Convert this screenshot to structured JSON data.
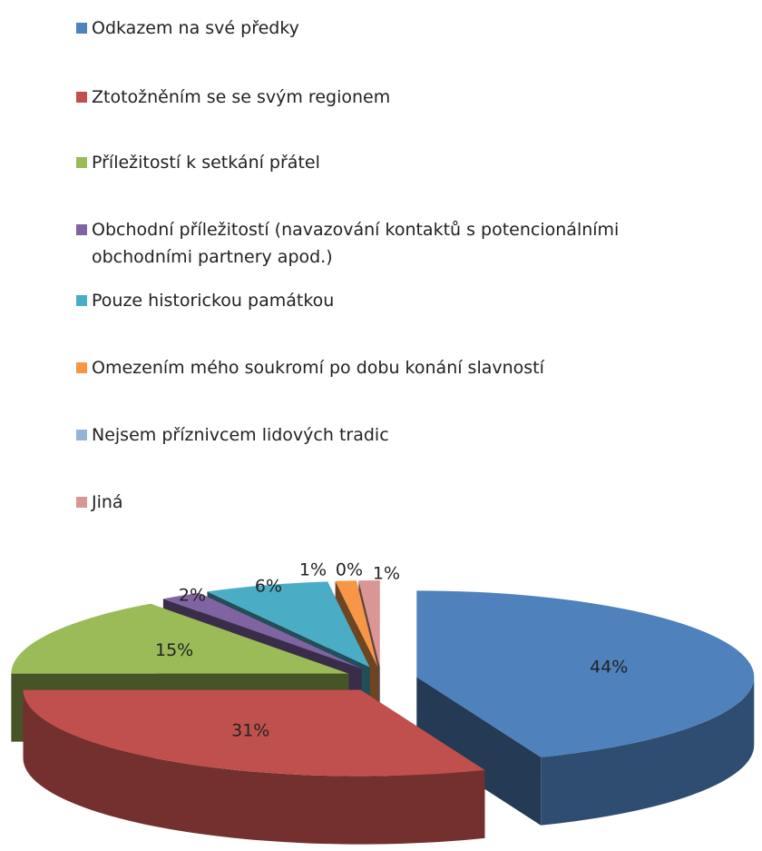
{
  "chart_data": {
    "type": "pie3d",
    "categories": [
      "Odkazem na své předky",
      "Ztotožněním se se svým regionem",
      "Příležitostí k setkání přátel",
      "Obchodní příležitostí (navazování kontaktů s potencionálními obchodními partnery apod.)",
      "Pouze historickou památkou",
      "Omezením mého soukromí po dobu konání slavností",
      "Nejsem příznivcem lidových tradic",
      "Jiná"
    ],
    "values": [
      44,
      31,
      15,
      2,
      6,
      1,
      0,
      1
    ],
    "value_labels": [
      "44%",
      "31%",
      "15%",
      "2%",
      "6%",
      "1%",
      "0%",
      "1%"
    ],
    "colors": [
      "#4f81bd",
      "#c0504d",
      "#9bbb59",
      "#8064a2",
      "#4bacc6",
      "#f79646",
      "#95b3d7",
      "#d99694"
    ],
    "legend": "top"
  }
}
